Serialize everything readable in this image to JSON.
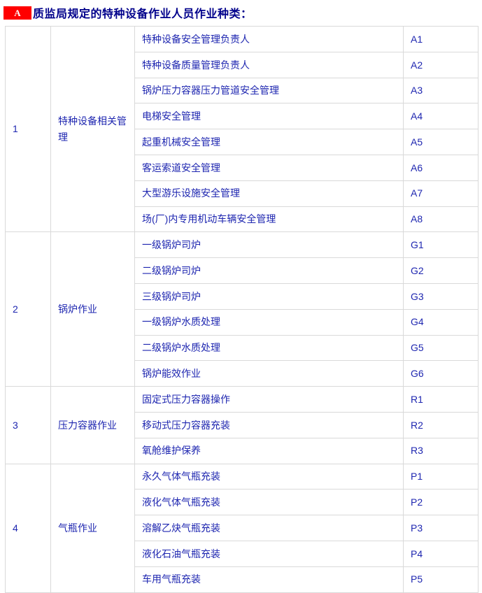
{
  "header": {
    "badge_label": "A",
    "title": "质监局规定的特种设备作业人员作业种类："
  },
  "colors": {
    "badge_bg": "#ff0000",
    "badge_fg": "#ffffff",
    "title_color": "#00008b",
    "cell_text": "#1e26b0",
    "border": "#d9d9d9"
  },
  "table": {
    "groups": [
      {
        "index": "1",
        "category": "特种设备相关管理",
        "items": [
          {
            "name": "特种设备安全管理负责人",
            "code": "A1"
          },
          {
            "name": "特种设备质量管理负责人",
            "code": "A2"
          },
          {
            "name": "锅炉压力容器压力管道安全管理",
            "code": "A3"
          },
          {
            "name": "电梯安全管理",
            "code": "A4"
          },
          {
            "name": "起重机械安全管理",
            "code": "A5"
          },
          {
            "name": "客运索道安全管理",
            "code": "A6"
          },
          {
            "name": "大型游乐设施安全管理",
            "code": "A7"
          },
          {
            "name": "场(厂)内专用机动车辆安全管理",
            "code": "A8"
          }
        ]
      },
      {
        "index": "2",
        "category": "锅炉作业",
        "items": [
          {
            "name": "一级锅炉司炉",
            "code": "G1"
          },
          {
            "name": "二级锅炉司炉",
            "code": "G2"
          },
          {
            "name": "三级锅炉司炉",
            "code": "G3"
          },
          {
            "name": "一级锅炉水质处理",
            "code": "G4"
          },
          {
            "name": "二级锅炉水质处理",
            "code": "G5"
          },
          {
            "name": "锅炉能效作业",
            "code": "G6"
          }
        ]
      },
      {
        "index": "3",
        "category": "压力容器作业",
        "items": [
          {
            "name": "固定式压力容器操作",
            "code": "R1"
          },
          {
            "name": "移动式压力容器充装",
            "code": "R2"
          },
          {
            "name": "氧舱维护保养",
            "code": "R3"
          }
        ]
      },
      {
        "index": "4",
        "category": "气瓶作业",
        "items": [
          {
            "name": "永久气体气瓶充装",
            "code": "P1"
          },
          {
            "name": "液化气体气瓶充装",
            "code": "P2"
          },
          {
            "name": "溶解乙炔气瓶充装",
            "code": "P3"
          },
          {
            "name": "液化石油气瓶充装",
            "code": "P4"
          },
          {
            "name": "车用气瓶充装",
            "code": "P5"
          }
        ]
      }
    ]
  }
}
